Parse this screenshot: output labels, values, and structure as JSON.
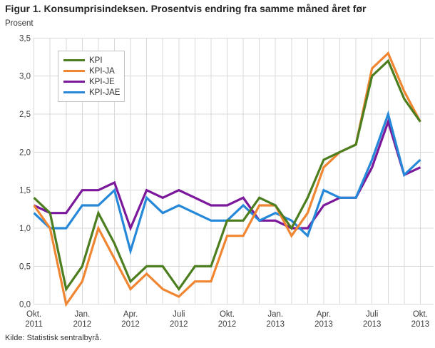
{
  "header": {
    "title": "Figur 1. Konsumprisindeksen. Prosentvis endring fra samme måned året før"
  },
  "footer": {
    "source": "Kilde: Statistisk sentralbyrå."
  },
  "chart_data": {
    "type": "line",
    "title": "Figur 1. Konsumprisindeksen. Prosentvis endring fra samme måned året før",
    "xlabel": "",
    "ylabel": "Prosent",
    "ylim": [
      0,
      3.5
    ],
    "grid": true,
    "legend_position": "top-left",
    "months": [
      "Okt. 2011",
      "Nov. 2011",
      "Des. 2011",
      "Jan. 2012",
      "Feb. 2012",
      "Mar. 2012",
      "Apr. 2012",
      "Mai 2012",
      "Juni 2012",
      "Juli 2012",
      "Aug. 2012",
      "Sep. 2012",
      "Okt. 2012",
      "Nov. 2012",
      "Des. 2012",
      "Jan. 2013",
      "Feb. 2013",
      "Mar. 2013",
      "Apr. 2013",
      "Mai 2013",
      "Juni 2013",
      "Juli 2013",
      "Aug. 2013",
      "Sep. 2013",
      "Okt. 2013"
    ],
    "x_ticks": [
      {
        "index": 0,
        "line1": "Okt.",
        "line2": "2011"
      },
      {
        "index": 3,
        "line1": "Jan.",
        "line2": "2012"
      },
      {
        "index": 6,
        "line1": "Apr.",
        "line2": "2012"
      },
      {
        "index": 9,
        "line1": "Juli",
        "line2": "2012"
      },
      {
        "index": 12,
        "line1": "Okt.",
        "line2": "2012"
      },
      {
        "index": 15,
        "line1": "Jan.",
        "line2": "2013"
      },
      {
        "index": 18,
        "line1": "Apr.",
        "line2": "2013"
      },
      {
        "index": 21,
        "line1": "Juli",
        "line2": "2013"
      },
      {
        "index": 24,
        "line1": "Okt.",
        "line2": "2013"
      }
    ],
    "y_ticks": [
      {
        "value": 0,
        "label": "0,0"
      },
      {
        "value": 0.5,
        "label": "0,5"
      },
      {
        "value": 1,
        "label": "1,0"
      },
      {
        "value": 1.5,
        "label": "1,5"
      },
      {
        "value": 2,
        "label": "2,0"
      },
      {
        "value": 2.5,
        "label": "2,5"
      },
      {
        "value": 3,
        "label": "3,0"
      },
      {
        "value": 3.5,
        "label": "3,5"
      }
    ],
    "series": [
      {
        "name": "KPI",
        "color": "#4c7d1e",
        "values": [
          1.4,
          1.2,
          0.2,
          0.5,
          1.2,
          0.8,
          0.3,
          0.5,
          0.5,
          0.2,
          0.5,
          0.5,
          1.1,
          1.1,
          1.4,
          1.3,
          1.0,
          1.4,
          1.9,
          2.0,
          2.1,
          3.0,
          3.2,
          2.7,
          2.4
        ]
      },
      {
        "name": "KPI-JA",
        "color": "#f08532",
        "values": [
          1.3,
          1.0,
          0.0,
          0.3,
          1.0,
          0.6,
          0.2,
          0.4,
          0.2,
          0.1,
          0.3,
          0.3,
          0.9,
          0.9,
          1.3,
          1.3,
          0.9,
          1.2,
          1.8,
          2.0,
          2.1,
          3.1,
          3.3,
          2.8,
          2.4
        ]
      },
      {
        "name": "KPI-JE",
        "color": "#7b189b",
        "values": [
          1.3,
          1.2,
          1.2,
          1.5,
          1.5,
          1.6,
          1.0,
          1.5,
          1.4,
          1.5,
          1.4,
          1.3,
          1.3,
          1.4,
          1.1,
          1.1,
          1.0,
          1.0,
          1.3,
          1.4,
          1.4,
          1.8,
          2.4,
          1.7,
          1.8
        ]
      },
      {
        "name": "KPI-JAE",
        "color": "#2688d8",
        "values": [
          1.2,
          1.0,
          1.0,
          1.3,
          1.3,
          1.5,
          0.7,
          1.4,
          1.2,
          1.3,
          1.2,
          1.1,
          1.1,
          1.3,
          1.1,
          1.2,
          1.1,
          0.9,
          1.5,
          1.4,
          1.4,
          1.9,
          2.5,
          1.7,
          1.9
        ]
      }
    ]
  }
}
